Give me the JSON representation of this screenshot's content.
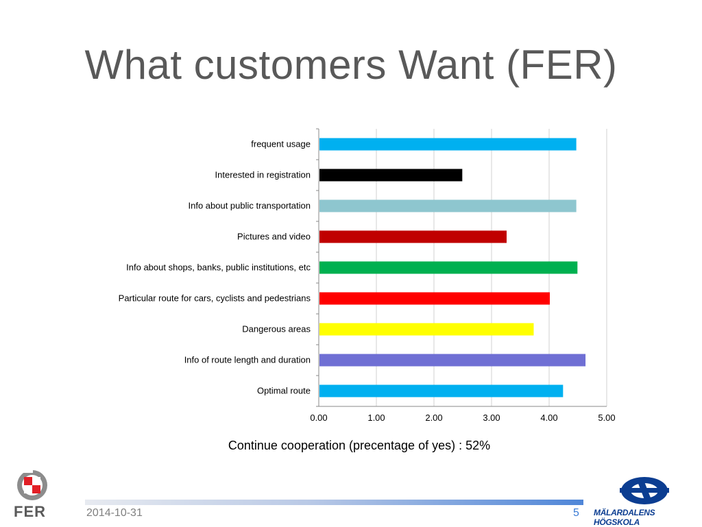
{
  "slide": {
    "title": "What customers Want (FER)",
    "caption": "Continue cooperation (precentage of yes) : 52%",
    "date": "2014-10-31",
    "page_number": "5",
    "logo_left_text": "FER",
    "logo_right_text": "MÄLARDALENS HÖGSKOLA"
  },
  "chart_data": {
    "type": "bar",
    "orientation": "horizontal",
    "categories": [
      "frequent usage",
      "Interested in registration",
      "Info about public transportation",
      "Pictures and video",
      "Info about shops, banks, public institutions, etc",
      "Particular route for cars, cyclists and pedestrians",
      "Dangerous areas",
      "Info of route length and duration",
      "Optimal route"
    ],
    "values": [
      4.46,
      2.48,
      4.46,
      3.25,
      4.48,
      4.0,
      3.72,
      4.62,
      4.23
    ],
    "colors": [
      "#00b0f0",
      "#000000",
      "#8ec6cf",
      "#c00000",
      "#00b050",
      "#ff0000",
      "#ffff00",
      "#6f6fd4",
      "#00b0f0"
    ],
    "xlim": [
      0,
      5
    ],
    "xticks": [
      "0.00",
      "1.00",
      "2.00",
      "3.00",
      "4.00",
      "5.00"
    ],
    "grid": true,
    "legend": false
  }
}
